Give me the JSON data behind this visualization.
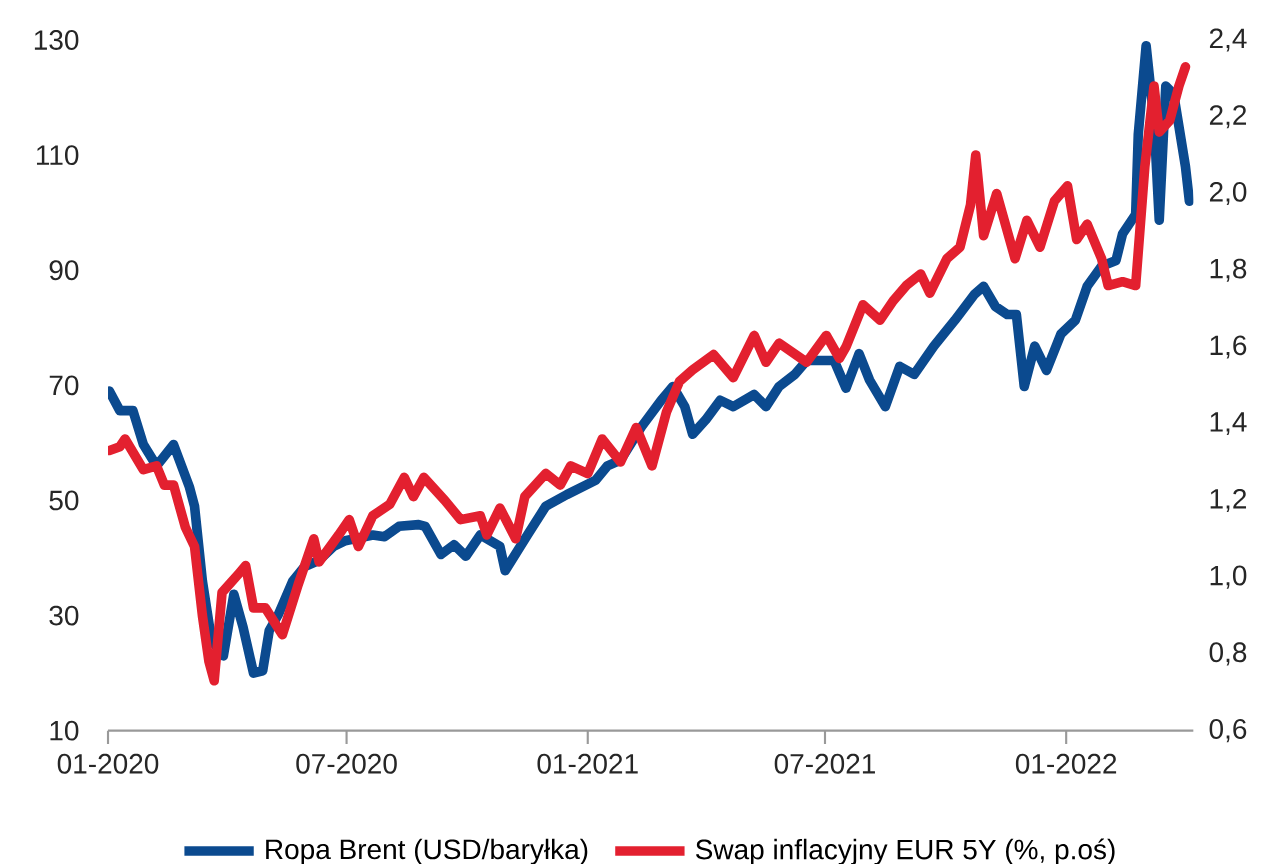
{
  "chart_data": {
    "type": "line",
    "xlim": [
      "2020-01-01",
      "2022-04-08"
    ],
    "xticks": [
      {
        "value": "2020-01-01",
        "label": "01-2020"
      },
      {
        "value": "2020-07-01",
        "label": "07-2020"
      },
      {
        "value": "2021-01-01",
        "label": "01-2021"
      },
      {
        "value": "2021-07-01",
        "label": "07-2021"
      },
      {
        "value": "2022-01-01",
        "label": "01-2022"
      }
    ],
    "ylim": [
      10,
      130
    ],
    "yticks": [
      10,
      30,
      50,
      70,
      90,
      110,
      130
    ],
    "y2lim": [
      0.6,
      2.4
    ],
    "y2ticks": [
      {
        "value": 0.6,
        "label": "0,6"
      },
      {
        "value": 0.8,
        "label": "0,8"
      },
      {
        "value": 1.0,
        "label": "1,0"
      },
      {
        "value": 1.2,
        "label": "1,2"
      },
      {
        "value": 1.4,
        "label": "1,4"
      },
      {
        "value": 1.6,
        "label": "1,6"
      },
      {
        "value": 1.8,
        "label": "1,8"
      },
      {
        "value": 2.0,
        "label": "2,0"
      },
      {
        "value": 2.2,
        "label": "2,2"
      },
      {
        "value": 2.4,
        "label": "2,4"
      }
    ],
    "legend": "bottom",
    "series": [
      {
        "name": "Ropa Brent (USD/baryłka)",
        "color": "#0b4a8f",
        "x": [
          "2020-01-02",
          "2020-01-10",
          "2020-01-20",
          "2020-01-28",
          "2020-02-07",
          "2020-02-20",
          "2020-03-03",
          "2020-03-07",
          "2020-03-13",
          "2020-03-20",
          "2020-03-29",
          "2020-04-06",
          "2020-04-13",
          "2020-04-21",
          "2020-04-28",
          "2020-05-03",
          "2020-05-10",
          "2020-05-21",
          "2020-05-30",
          "2020-06-10",
          "2020-06-21",
          "2020-06-30",
          "2020-07-21",
          "2020-07-30",
          "2020-08-10",
          "2020-08-25",
          "2020-08-30",
          "2020-09-11",
          "2020-09-21",
          "2020-09-30",
          "2020-10-11",
          "2020-10-26",
          "2020-10-30",
          "2020-11-16",
          "2020-11-30",
          "2020-12-16",
          "2021-01-07",
          "2021-01-16",
          "2021-01-26",
          "2021-02-11",
          "2021-02-26",
          "2021-03-07",
          "2021-03-16",
          "2021-03-22",
          "2021-04-01",
          "2021-04-12",
          "2021-04-22",
          "2021-05-08",
          "2021-05-17",
          "2021-05-27",
          "2021-06-08",
          "2021-06-17",
          "2021-07-08",
          "2021-07-17",
          "2021-07-27",
          "2021-08-04",
          "2021-08-16",
          "2021-08-27",
          "2021-09-07",
          "2021-09-22",
          "2021-10-08",
          "2021-10-23",
          "2021-10-30",
          "2021-11-08",
          "2021-11-17",
          "2021-11-24",
          "2021-11-30",
          "2021-12-08",
          "2021-12-17",
          "2021-12-28",
          "2022-01-08",
          "2022-01-17",
          "2022-01-28",
          "2022-02-08",
          "2022-02-13",
          "2022-02-23",
          "2022-02-25",
          "2022-03-03",
          "2022-03-09",
          "2022-03-13",
          "2022-03-18",
          "2022-03-24",
          "2022-03-28",
          "2022-04-02",
          "2022-04-05"
        ],
        "values": [
          69,
          65.6,
          65.6,
          59.7,
          56,
          59.7,
          52.4,
          49,
          36,
          25.7,
          23,
          33.7,
          28,
          20,
          20.4,
          27.4,
          30.2,
          36,
          38.5,
          39.6,
          42,
          43,
          44,
          43.7,
          45.5,
          45.8,
          45.5,
          40.6,
          42.3,
          40.3,
          44,
          42,
          37.8,
          44,
          49,
          51,
          53.5,
          56,
          57,
          62.8,
          67.4,
          69.8,
          66.3,
          61.5,
          64,
          67.4,
          66.3,
          68.4,
          66.3,
          69.8,
          71.9,
          74.3,
          74.3,
          69.5,
          75.5,
          70.9,
          66.3,
          73.3,
          71.9,
          76.8,
          81.3,
          85.8,
          87.2,
          83.7,
          82.3,
          82.3,
          69.8,
          76.8,
          72.6,
          78.9,
          81.3,
          87.2,
          90.7,
          91.7,
          96.3,
          99.7,
          113.6,
          129,
          116,
          98.7,
          122,
          120.6,
          115,
          108,
          102
        ]
      },
      {
        "name": "Swap inflacyjny EUR 5Y (%, p.oś)",
        "color": "#e3202f",
        "axis": "y2",
        "x": [
          "2020-01-02",
          "2020-01-10",
          "2020-01-14",
          "2020-01-28",
          "2020-02-07",
          "2020-02-13",
          "2020-02-20",
          "2020-02-29",
          "2020-03-07",
          "2020-03-13",
          "2020-03-18",
          "2020-03-22",
          "2020-03-28",
          "2020-04-10",
          "2020-04-15",
          "2020-04-21",
          "2020-04-30",
          "2020-05-13",
          "2020-05-25",
          "2020-06-06",
          "2020-06-10",
          "2020-06-25",
          "2020-07-03",
          "2020-07-10",
          "2020-07-21",
          "2020-08-03",
          "2020-08-14",
          "2020-08-21",
          "2020-08-29",
          "2020-09-14",
          "2020-09-26",
          "2020-10-11",
          "2020-10-16",
          "2020-10-26",
          "2020-11-07",
          "2020-11-14",
          "2020-11-30",
          "2020-12-11",
          "2020-12-19",
          "2021-01-01",
          "2021-01-12",
          "2021-01-26",
          "2021-02-07",
          "2021-02-19",
          "2021-03-02",
          "2021-03-12",
          "2021-03-22",
          "2021-04-07",
          "2021-04-22",
          "2021-05-08",
          "2021-05-17",
          "2021-05-27",
          "2021-06-17",
          "2021-07-02",
          "2021-07-12",
          "2021-07-17",
          "2021-07-30",
          "2021-08-12",
          "2021-08-22",
          "2021-09-01",
          "2021-09-12",
          "2021-09-19",
          "2021-10-02",
          "2021-10-12",
          "2021-10-20",
          "2021-10-24",
          "2021-10-30",
          "2021-11-09",
          "2021-11-23",
          "2021-12-02",
          "2021-12-12",
          "2021-12-23",
          "2022-01-02",
          "2022-01-09",
          "2022-01-17",
          "2022-01-28",
          "2022-02-02",
          "2022-02-13",
          "2022-02-23",
          "2022-03-02",
          "2022-03-09",
          "2022-03-13",
          "2022-03-21",
          "2022-03-28",
          "2022-04-02"
        ],
        "values": [
          1.33,
          1.34,
          1.36,
          1.28,
          1.29,
          1.24,
          1.24,
          1.13,
          1.08,
          0.9,
          0.78,
          0.73,
          0.96,
          1.01,
          1.03,
          0.92,
          0.92,
          0.85,
          0.98,
          1.1,
          1.04,
          1.11,
          1.15,
          1.08,
          1.16,
          1.19,
          1.26,
          1.21,
          1.26,
          1.2,
          1.15,
          1.16,
          1.11,
          1.18,
          1.1,
          1.21,
          1.27,
          1.24,
          1.29,
          1.27,
          1.36,
          1.3,
          1.39,
          1.29,
          1.43,
          1.51,
          1.54,
          1.58,
          1.52,
          1.63,
          1.56,
          1.61,
          1.56,
          1.63,
          1.57,
          1.6,
          1.71,
          1.67,
          1.72,
          1.76,
          1.79,
          1.74,
          1.83,
          1.86,
          1.97,
          2.1,
          1.89,
          2.0,
          1.83,
          1.93,
          1.86,
          1.98,
          2.02,
          1.88,
          1.92,
          1.83,
          1.76,
          1.77,
          1.76,
          2.07,
          2.28,
          2.16,
          2.19,
          2.28,
          2.33
        ]
      }
    ]
  }
}
